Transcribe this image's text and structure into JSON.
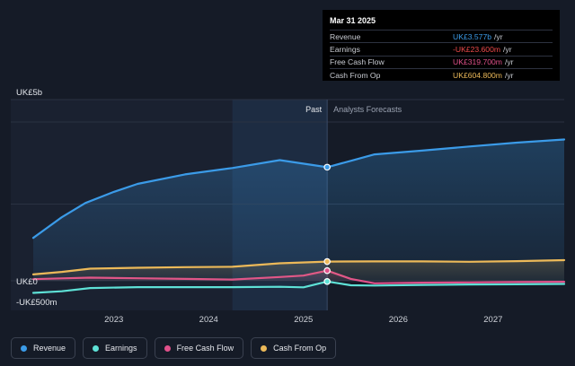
{
  "chart_data": {
    "type": "line",
    "y_axis": {
      "unit_labels": [
        "UK£5b",
        "UK£0",
        "-UK£500m"
      ],
      "ylim": [
        -500,
        5000
      ]
    },
    "x_axis": {
      "ticks": [
        "2023",
        "2024",
        "2025",
        "2026",
        "2027"
      ],
      "xlim": [
        2022.15,
        2027.75
      ]
    },
    "period_labels": {
      "past": "Past",
      "forecast": "Analysts Forecasts"
    },
    "forecast_start": 2025.25,
    "highlight_band": [
      2024.25,
      2025.25
    ],
    "series": [
      {
        "name": "Revenue",
        "color": "#3b9be8",
        "fill": true,
        "points": [
          [
            2022.15,
            1350
          ],
          [
            2022.45,
            2000
          ],
          [
            2022.7,
            2450
          ],
          [
            2023.0,
            2800
          ],
          [
            2023.25,
            3050
          ],
          [
            2023.75,
            3350
          ],
          [
            2024.25,
            3550
          ],
          [
            2024.75,
            3800
          ],
          [
            2025.25,
            3577
          ],
          [
            2025.75,
            3980
          ],
          [
            2026.25,
            4100
          ],
          [
            2026.75,
            4230
          ],
          [
            2027.25,
            4350
          ],
          [
            2027.75,
            4450
          ]
        ]
      },
      {
        "name": "Earnings",
        "color": "#5ee1d6",
        "fill": false,
        "points": [
          [
            2022.15,
            -380
          ],
          [
            2022.45,
            -330
          ],
          [
            2022.75,
            -230
          ],
          [
            2023.25,
            -200
          ],
          [
            2023.75,
            -200
          ],
          [
            2024.25,
            -200
          ],
          [
            2024.75,
            -190
          ],
          [
            2025.0,
            -205
          ],
          [
            2025.25,
            -23.6
          ],
          [
            2025.5,
            -140
          ],
          [
            2025.75,
            -150
          ],
          [
            2026.25,
            -130
          ],
          [
            2026.75,
            -115
          ],
          [
            2027.25,
            -110
          ],
          [
            2027.75,
            -100
          ]
        ]
      },
      {
        "name": "Free Cash Flow",
        "color": "#e0508a",
        "fill": true,
        "points": [
          [
            2022.15,
            50
          ],
          [
            2022.45,
            75
          ],
          [
            2022.75,
            100
          ],
          [
            2023.25,
            80
          ],
          [
            2023.75,
            60
          ],
          [
            2024.25,
            40
          ],
          [
            2024.75,
            120
          ],
          [
            2025.0,
            165
          ],
          [
            2025.25,
            319.7
          ],
          [
            2025.5,
            60
          ],
          [
            2025.75,
            -80
          ],
          [
            2026.25,
            -60
          ],
          [
            2026.75,
            -50
          ],
          [
            2027.25,
            -40
          ],
          [
            2027.75,
            -30
          ]
        ]
      },
      {
        "name": "Cash From Op",
        "color": "#ecb959",
        "fill": true,
        "points": [
          [
            2022.15,
            200
          ],
          [
            2022.45,
            280
          ],
          [
            2022.75,
            380
          ],
          [
            2023.25,
            410
          ],
          [
            2023.75,
            430
          ],
          [
            2024.25,
            440
          ],
          [
            2024.75,
            550
          ],
          [
            2025.25,
            604.8
          ],
          [
            2025.75,
            610
          ],
          [
            2026.25,
            610
          ],
          [
            2026.75,
            600
          ],
          [
            2027.25,
            620
          ],
          [
            2027.75,
            650
          ]
        ]
      }
    ]
  },
  "tooltip": {
    "date": "Mar 31 2025",
    "rows": [
      {
        "name": "Revenue",
        "value": "UK£3.577b",
        "unit": "/yr",
        "color": "#3b9be8"
      },
      {
        "name": "Earnings",
        "value": "-UK£23.600m",
        "unit": "/yr",
        "color": "#f04b4b"
      },
      {
        "name": "Free Cash Flow",
        "value": "UK£319.700m",
        "unit": "/yr",
        "color": "#e0508a"
      },
      {
        "name": "Cash From Op",
        "value": "UK£604.800m",
        "unit": "/yr",
        "color": "#ecb959"
      }
    ]
  },
  "legend": [
    {
      "label": "Revenue",
      "color": "#3b9be8"
    },
    {
      "label": "Earnings",
      "color": "#5ee1d6"
    },
    {
      "label": "Free Cash Flow",
      "color": "#e0508a"
    },
    {
      "label": "Cash From Op",
      "color": "#ecb959"
    }
  ]
}
